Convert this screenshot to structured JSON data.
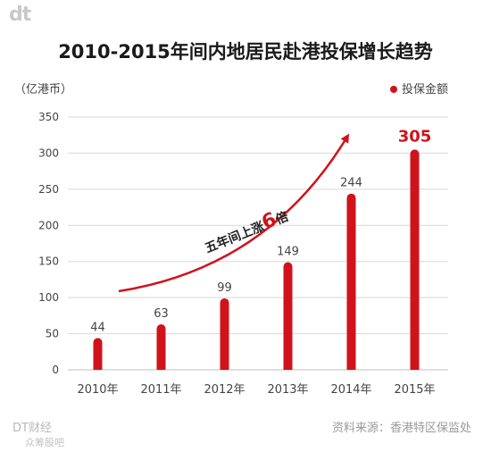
{
  "brand": {
    "logo": "dt",
    "footer_name": "DT财经",
    "watermark": "众筹股吧"
  },
  "source": "资料来源：香港特区保监处",
  "chart_data": {
    "type": "bar",
    "title": "2010-2015年间内地居民赴港投保增长趋势",
    "unit_label": "（亿港币）",
    "legend": "投保金额",
    "legend_position": "top-right",
    "categories": [
      "2010年",
      "2011年",
      "2012年",
      "2013年",
      "2014年",
      "2015年"
    ],
    "series": [
      {
        "name": "投保金额",
        "values": [
          44,
          63,
          99,
          149,
          244,
          305
        ]
      }
    ],
    "yticks": [
      0,
      50,
      100,
      150,
      200,
      250,
      300,
      350
    ],
    "ylim": [
      0,
      350
    ],
    "grid": true,
    "annotation": {
      "text_prefix": "五年间上涨",
      "highlight": "6",
      "text_suffix": "倍"
    },
    "colors": {
      "bar": "#d0121b",
      "grid": "#d9d9d9",
      "text": "#444444"
    }
  }
}
